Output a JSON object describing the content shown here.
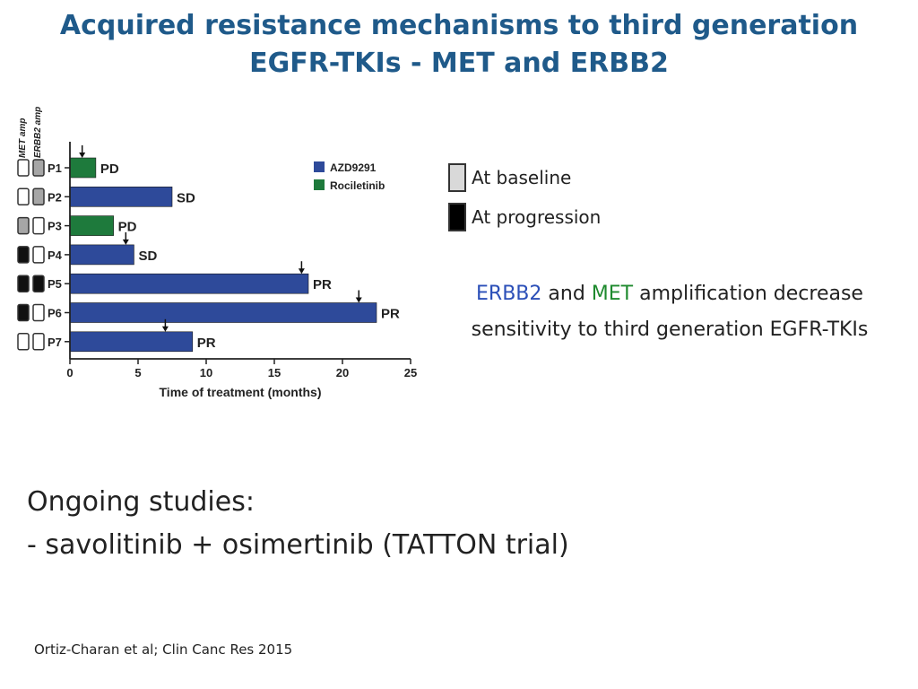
{
  "slide": {
    "title": "Acquired resistance mechanisms to third generation EGFR-TKIs - MET and ERBB2",
    "key": {
      "baseline_label": "At baseline",
      "baseline_color": "#d9d9d9",
      "progression_label": "At progression",
      "progression_color": "#000000"
    },
    "conclusion": {
      "erbb2": "ERBB2",
      "and": " and ",
      "met": "MET",
      "line1_rest": " amplification decrease",
      "line2": "sensitivity to third generation EGFR-TKIs",
      "erbb2_color": "#2b4fb8",
      "met_color": "#1e8a2e"
    },
    "studies": {
      "heading": "Ongoing studies:",
      "item1": "- savolitinib + osimertinib (TATTON trial)"
    },
    "citation": "Ortiz-Charan et al; Clin Canc Res 2015"
  },
  "chart_data": {
    "type": "bar",
    "orientation": "horizontal",
    "xlabel": "Time of treatment (months)",
    "xlim": [
      0,
      25
    ],
    "xticks": [
      0,
      5,
      10,
      15,
      20,
      25
    ],
    "column_headers": [
      "MET amp",
      "ERBB2 amp"
    ],
    "legend": [
      {
        "name": "AZD9291",
        "color": "#2e4a9a"
      },
      {
        "name": "Rociletinib",
        "color": "#1e7a3c"
      }
    ],
    "legend_position": "top-right",
    "box_colors": {
      "none": "#ffffff",
      "baseline": "#a6a6a6",
      "progression": "#111111"
    },
    "patients": [
      {
        "id": "P1",
        "months": 1.9,
        "drug": "Rociletinib",
        "response": "PD",
        "arrow": 0.9,
        "met": "none",
        "erbb2": "baseline"
      },
      {
        "id": "P2",
        "months": 7.5,
        "drug": "AZD9291",
        "response": "SD",
        "arrow": null,
        "met": "none",
        "erbb2": "baseline"
      },
      {
        "id": "P3",
        "months": 3.2,
        "drug": "Rociletinib",
        "response": "PD",
        "arrow": null,
        "met": "baseline",
        "erbb2": "none"
      },
      {
        "id": "P4",
        "months": 4.7,
        "drug": "AZD9291",
        "response": "SD",
        "arrow": 4.1,
        "met": "progression",
        "erbb2": "none"
      },
      {
        "id": "P5",
        "months": 17.5,
        "drug": "AZD9291",
        "response": "PR",
        "arrow": 17.0,
        "met": "progression",
        "erbb2": "progression"
      },
      {
        "id": "P6",
        "months": 22.5,
        "drug": "AZD9291",
        "response": "PR",
        "arrow": 21.2,
        "met": "progression",
        "erbb2": "none"
      },
      {
        "id": "P7",
        "months": 9.0,
        "drug": "AZD9291",
        "response": "PR",
        "arrow": 7.0,
        "met": "none",
        "erbb2": "none"
      }
    ]
  }
}
